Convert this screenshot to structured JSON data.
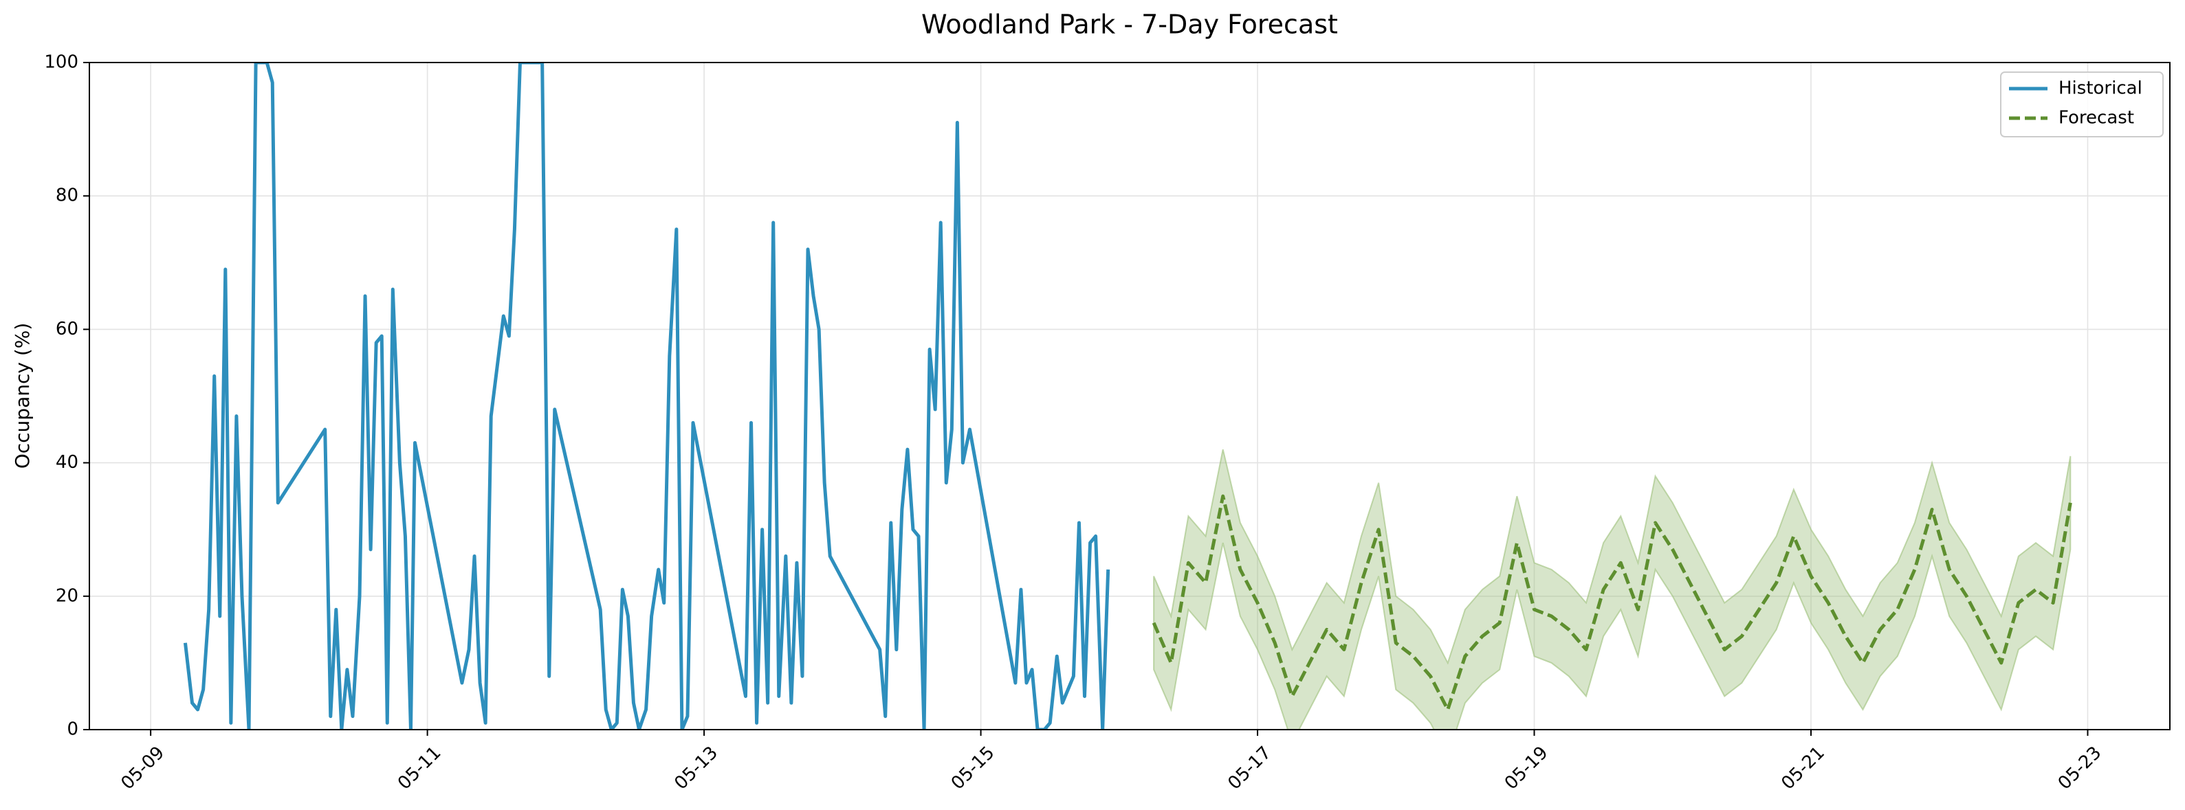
{
  "chart_data": {
    "type": "line",
    "title": "Woodland Park - 7-Day Forecast",
    "y_label": "Occupancy (%)",
    "xlim": [
      8.557,
      23.594
    ],
    "ylim": [
      0,
      100
    ],
    "xticks": [
      {
        "value": 9,
        "label": "05-09"
      },
      {
        "value": 11,
        "label": "05-11"
      },
      {
        "value": 13,
        "label": "05-13"
      },
      {
        "value": 15,
        "label": "05-15"
      },
      {
        "value": 17,
        "label": "05-17"
      },
      {
        "value": 19,
        "label": "05-19"
      },
      {
        "value": 21,
        "label": "05-21"
      },
      {
        "value": 23,
        "label": "05-23"
      }
    ],
    "yticks": [
      0,
      20,
      40,
      60,
      80,
      100
    ],
    "grid": true,
    "legend": "upper right",
    "series": [
      {
        "name": "Historical",
        "color": "#2e8fbd",
        "dash": false,
        "x": [
          9.25,
          9.3,
          9.34,
          9.38,
          9.42,
          9.46,
          9.5,
          9.54,
          9.58,
          9.62,
          9.66,
          9.71,
          9.76,
          9.84,
          9.88,
          9.92,
          10.26,
          10.3,
          10.34,
          10.38,
          10.42,
          10.46,
          10.51,
          10.55,
          10.59,
          10.63,
          10.67,
          10.71,
          10.75,
          10.8,
          10.84,
          10.88,
          10.91,
          11.25,
          11.3,
          11.34,
          11.38,
          11.42,
          11.46,
          11.55,
          11.59,
          11.63,
          11.67,
          11.83,
          11.88,
          11.92,
          12.25,
          12.29,
          12.33,
          12.37,
          12.41,
          12.45,
          12.49,
          12.53,
          12.58,
          12.62,
          12.67,
          12.71,
          12.75,
          12.8,
          12.84,
          12.88,
          12.92,
          13.3,
          13.34,
          13.38,
          13.42,
          13.46,
          13.5,
          13.54,
          13.59,
          13.63,
          13.67,
          13.71,
          13.75,
          13.79,
          13.83,
          13.87,
          13.91,
          14.27,
          14.31,
          14.35,
          14.39,
          14.43,
          14.47,
          14.51,
          14.55,
          14.59,
          14.63,
          14.67,
          14.71,
          14.75,
          14.79,
          14.83,
          14.87,
          14.92,
          15.25,
          15.29,
          15.33,
          15.37,
          15.41,
          15.46,
          15.5,
          15.55,
          15.59,
          15.63,
          15.67,
          15.71,
          15.75,
          15.79,
          15.83,
          15.88,
          15.92
        ],
        "values": [
          13,
          4,
          3,
          6,
          18,
          53,
          17,
          69,
          1,
          47,
          20,
          0,
          100,
          100,
          97,
          34,
          45,
          2,
          18,
          0,
          9,
          2,
          20,
          65,
          27,
          58,
          59,
          1,
          66,
          40,
          29,
          0,
          43,
          7,
          12,
          26,
          7,
          1,
          47,
          62,
          59,
          75,
          100,
          100,
          8,
          48,
          18,
          3,
          0,
          1,
          21,
          17,
          4,
          0,
          3,
          17,
          24,
          19,
          56,
          75,
          0,
          2,
          46,
          5,
          46,
          1,
          30,
          4,
          76,
          5,
          26,
          4,
          25,
          8,
          72,
          65,
          60,
          37,
          26,
          12,
          2,
          31,
          12,
          33,
          42,
          30,
          29,
          0,
          57,
          48,
          76,
          37,
          45,
          91,
          40,
          45,
          7,
          21,
          7,
          9,
          0,
          0,
          1,
          11,
          4,
          6,
          8,
          31,
          5,
          28,
          29,
          0,
          24
        ]
      },
      {
        "name": "Forecast",
        "color": "#5e8f2f",
        "dash": true,
        "band_color": "#9cbf7a",
        "x": [
          16.25,
          16.375,
          16.5,
          16.625,
          16.75,
          16.875,
          17,
          17.125,
          17.25,
          17.375,
          17.5,
          17.625,
          17.75,
          17.875,
          18,
          18.125,
          18.25,
          18.375,
          18.5,
          18.625,
          18.75,
          18.875,
          19,
          19.125,
          19.25,
          19.375,
          19.5,
          19.625,
          19.75,
          19.875,
          20,
          20.125,
          20.25,
          20.375,
          20.5,
          20.625,
          20.75,
          20.875,
          21,
          21.125,
          21.25,
          21.375,
          21.5,
          21.625,
          21.75,
          21.875,
          22,
          22.125,
          22.25,
          22.375,
          22.5,
          22.625,
          22.75,
          22.875
        ],
        "values": [
          16,
          10,
          25,
          22,
          35,
          24,
          19,
          13,
          5,
          10,
          15,
          12,
          22,
          30,
          13,
          11,
          8,
          3,
          11,
          14,
          16,
          28,
          18,
          17,
          15,
          12,
          21,
          25,
          18,
          31,
          27,
          22,
          17,
          12,
          14,
          18,
          22,
          29,
          23,
          19,
          14,
          10,
          15,
          18,
          24,
          33,
          24,
          20,
          15,
          10,
          19,
          21,
          19,
          34
        ],
        "lower": [
          9,
          3,
          18,
          15,
          28,
          17,
          12,
          6,
          -2,
          3,
          8,
          5,
          15,
          23,
          6,
          4,
          1,
          -4,
          4,
          7,
          9,
          21,
          11,
          10,
          8,
          5,
          14,
          18,
          11,
          24,
          20,
          15,
          10,
          5,
          7,
          11,
          15,
          22,
          16,
          12,
          7,
          3,
          8,
          11,
          17,
          26,
          17,
          13,
          8,
          3,
          12,
          14,
          12,
          27
        ],
        "upper": [
          23,
          17,
          32,
          29,
          42,
          31,
          26,
          20,
          12,
          17,
          22,
          19,
          29,
          37,
          20,
          18,
          15,
          10,
          18,
          21,
          23,
          35,
          25,
          24,
          22,
          19,
          28,
          32,
          25,
          38,
          34,
          29,
          24,
          19,
          21,
          25,
          29,
          36,
          30,
          26,
          21,
          17,
          22,
          25,
          31,
          40,
          31,
          27,
          22,
          17,
          26,
          28,
          26,
          41
        ]
      }
    ]
  }
}
